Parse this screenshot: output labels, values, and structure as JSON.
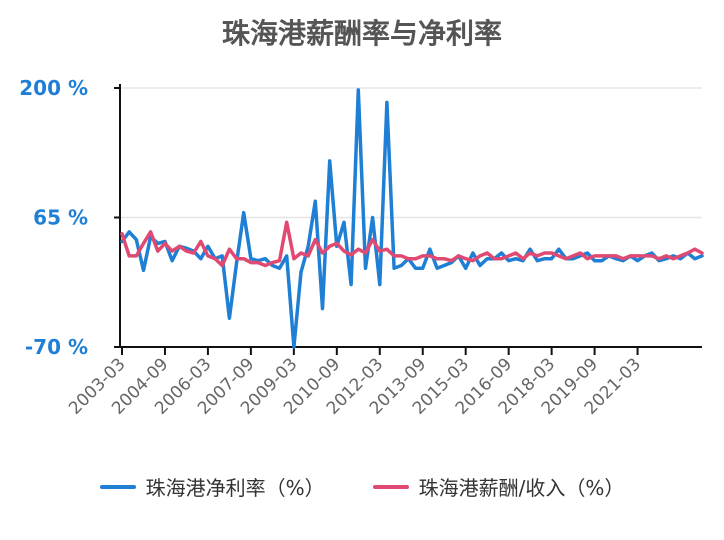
{
  "chart_data": {
    "type": "line",
    "title": "珠海港薪酬率与净利率",
    "xlabel": "",
    "ylabel": "",
    "yaxis_ticks": [
      {
        "value": 200,
        "label": "200 %"
      },
      {
        "value": 65,
        "label": "65 %"
      },
      {
        "value": -70,
        "label": "-70 %"
      }
    ],
    "ylim": [
      -70,
      200
    ],
    "grid": "horizontal",
    "legend_position": "bottom",
    "x_tick_labels": [
      "2003-03",
      "2004-09",
      "2006-03",
      "2007-09",
      "2009-03",
      "2010-09",
      "2012-03",
      "2013-09",
      "2015-03",
      "2016-09",
      "2018-03",
      "2019-09",
      "2021-03"
    ],
    "x_start": "2003-03",
    "x_frequency": "quarterly",
    "series": [
      {
        "name": "珠海港净利率（%）",
        "color": "#1f7fd4",
        "values": [
          40,
          50,
          42,
          10,
          45,
          38,
          40,
          20,
          35,
          33,
          30,
          22,
          35,
          22,
          25,
          -40,
          18,
          70,
          22,
          20,
          22,
          15,
          12,
          25,
          -70,
          8,
          35,
          82,
          -30,
          124,
          35,
          60,
          -5,
          198,
          12,
          65,
          -5,
          185,
          12,
          15,
          22,
          12,
          12,
          32,
          12,
          15,
          18,
          25,
          12,
          28,
          15,
          22,
          22,
          28,
          20,
          22,
          20,
          32,
          20,
          22,
          22,
          32,
          22,
          22,
          25,
          28,
          20,
          20,
          25,
          22,
          20,
          25,
          20,
          25,
          28,
          20,
          22,
          25,
          22,
          28,
          22,
          25
        ]
      },
      {
        "name": "珠海港薪酬/收入（%）",
        "color": "#e04a72",
        "values": [
          48,
          25,
          25,
          38,
          50,
          30,
          38,
          30,
          35,
          30,
          28,
          40,
          25,
          22,
          15,
          32,
          22,
          22,
          18,
          18,
          15,
          18,
          20,
          60,
          22,
          28,
          25,
          42,
          28,
          35,
          38,
          30,
          26,
          32,
          28,
          42,
          30,
          32,
          25,
          25,
          22,
          22,
          25,
          25,
          22,
          22,
          20,
          25,
          22,
          20,
          25,
          28,
          22,
          22,
          25,
          28,
          22,
          28,
          25,
          28,
          28,
          25,
          22,
          25,
          28,
          22,
          25,
          25,
          25,
          25,
          22,
          25,
          25,
          25,
          25,
          22,
          25,
          22,
          25,
          28,
          32,
          28
        ]
      }
    ]
  }
}
